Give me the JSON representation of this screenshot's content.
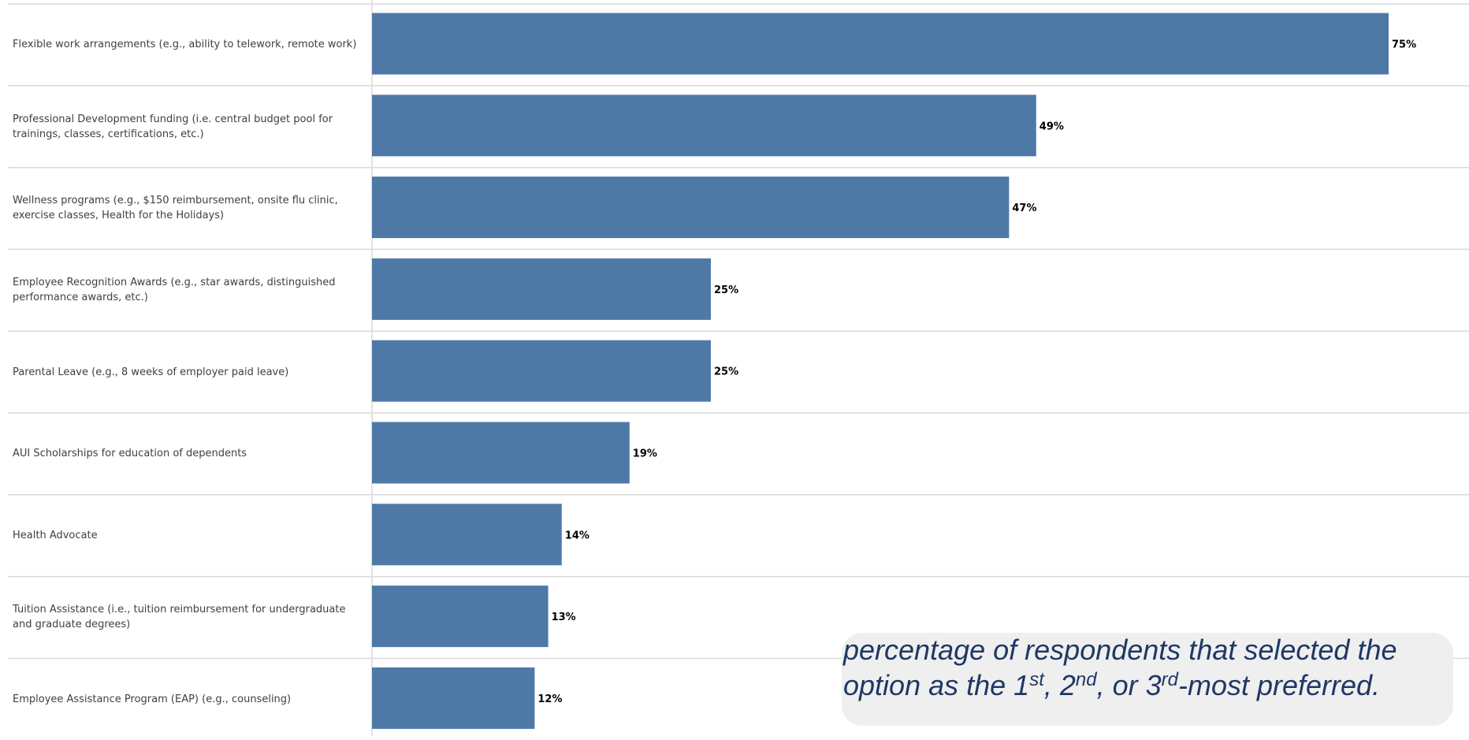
{
  "chart_data": {
    "type": "bar",
    "orientation": "horizontal",
    "categories": [
      "Flexible work arrangements (e.g., ability to telework, remote work)",
      "Professional Development funding (i.e. central budget pool for trainings, classes, certifications, etc.)",
      "Wellness programs (e.g., $150 reimbursement, onsite flu clinic, exercise classes, Health for the Holidays)",
      "Employee Recognition Awards (e.g., star awards, distinguished performance awards, etc.)",
      "Parental Leave (e.g., 8 weeks of employer paid leave)",
      "AUI Scholarships for education of dependents",
      "Health Advocate",
      "Tuition Assistance (i.e., tuition reimbursement for undergraduate and graduate degrees)",
      "Employee Assistance Program (EAP) (e.g., counseling)"
    ],
    "values": [
      75,
      49,
      47,
      25,
      25,
      19,
      14,
      13,
      12
    ],
    "value_labels": [
      "75%",
      "49%",
      "47%",
      "25%",
      "25%",
      "19%",
      "14%",
      "13%",
      "12%"
    ],
    "xlim": [
      0,
      100
    ],
    "grid": "horizontal-row-separators",
    "bar_color": "#4e79a7"
  },
  "callout": {
    "line1": "percentage of respondents  that selected the",
    "line2_start": "option as  the 1",
    "sup1": "st",
    "sep1": ", 2",
    "sup2": "nd",
    "sep2": ", or 3",
    "sup3": "rd",
    "line2_end": "-most  preferred."
  }
}
